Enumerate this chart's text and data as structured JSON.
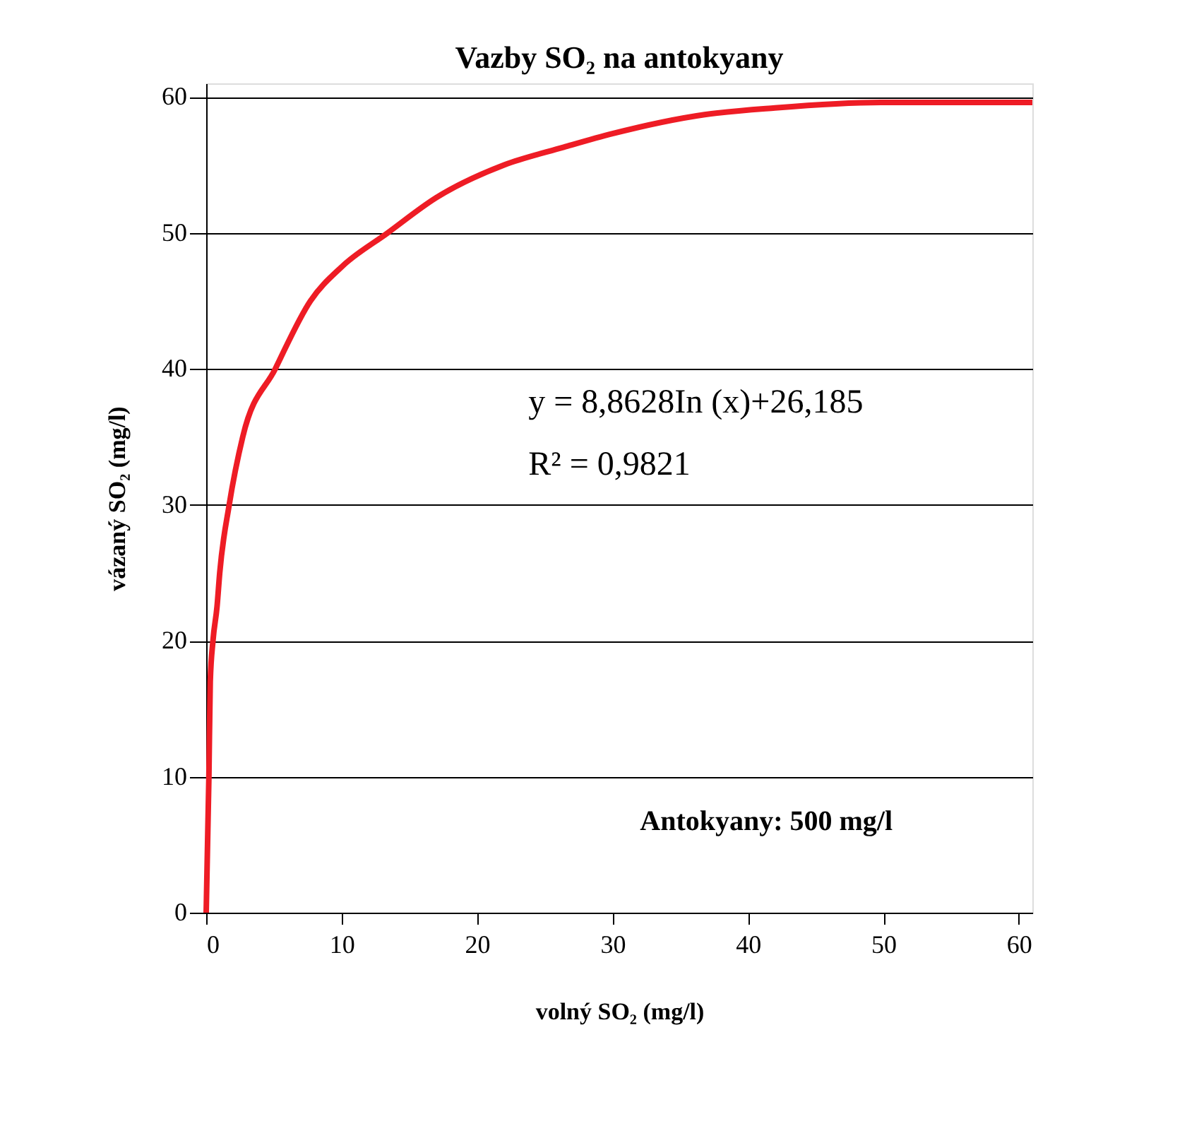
{
  "chart_data": {
    "type": "line",
    "title": "Vazby SO₂ na antokyany",
    "xlabel": "volný SO₂ (mg/l)",
    "ylabel": "vázaný SO₂ (mg/l)",
    "x": [
      0,
      0.2,
      0.3,
      0.5,
      0.8,
      1,
      1.7,
      2.7,
      5.1,
      7.7,
      10,
      13.4,
      17,
      22,
      26.4,
      30,
      36.8,
      42,
      49.8,
      61
    ],
    "series": [
      {
        "color": "#ee1c25",
        "values": [
          0,
          10,
          17,
          20,
          22.5,
          25,
          30,
          35,
          40,
          45,
          47.5,
          50,
          52.6,
          55,
          56.3,
          57.3,
          58.7,
          59.2,
          59.6,
          59.6
        ]
      }
    ],
    "xlim": [
      0,
      61
    ],
    "ylim": [
      0,
      61
    ],
    "xticks": [
      0,
      10,
      20,
      30,
      40,
      50,
      60
    ],
    "yticks": [
      0,
      10,
      20,
      30,
      40,
      50,
      60
    ],
    "grid": "y",
    "marker": "none",
    "line_style": "solid",
    "annotations": [
      "y = 8,8628In (x)+26,185",
      "R² = 0,9821",
      "Antokyany: 500 mg/l"
    ]
  }
}
